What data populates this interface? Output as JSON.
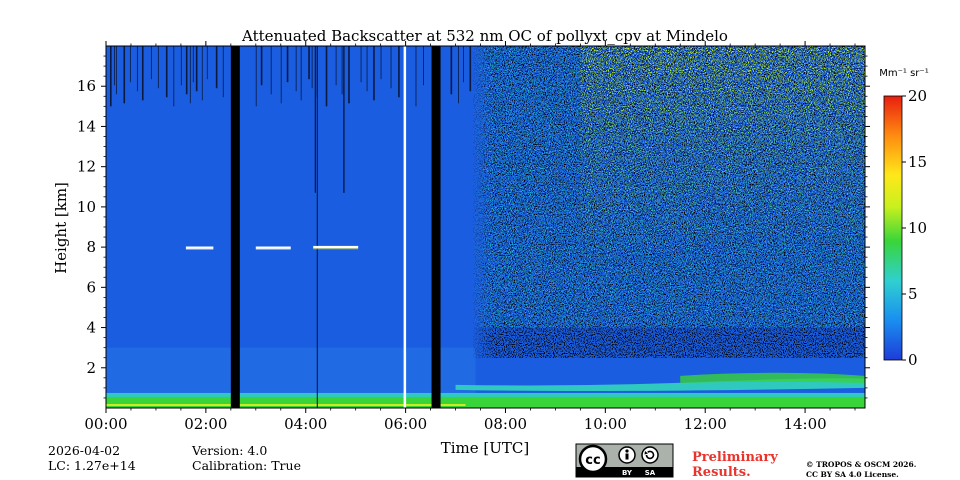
{
  "chart_data": {
    "type": "heatmap",
    "title": "Attenuated Backscatter at 532 nm OC of pollyxt_cpv at Mindelo",
    "xlabel": "Time [UTC]",
    "ylabel": "Height [km]",
    "xlim": [
      0,
      15.2
    ],
    "ylim": [
      0,
      18
    ],
    "x_ticks": [
      {
        "value": 0,
        "label": "00:00"
      },
      {
        "value": 2,
        "label": "02:00"
      },
      {
        "value": 4,
        "label": "04:00"
      },
      {
        "value": 6,
        "label": "06:00"
      },
      {
        "value": 8,
        "label": "08:00"
      },
      {
        "value": 10,
        "label": "10:00"
      },
      {
        "value": 12,
        "label": "12:00"
      },
      {
        "value": 14,
        "label": "14:00"
      }
    ],
    "y_ticks": [
      {
        "value": 2,
        "label": "2"
      },
      {
        "value": 4,
        "label": "4"
      },
      {
        "value": 6,
        "label": "6"
      },
      {
        "value": 8,
        "label": "8"
      },
      {
        "value": 10,
        "label": "10"
      },
      {
        "value": 12,
        "label": "12"
      },
      {
        "value": 14,
        "label": "14"
      },
      {
        "value": 16,
        "label": "16"
      }
    ],
    "colorbar": {
      "unit_label": "Mm⁻¹ sr⁻¹",
      "range": [
        0,
        20
      ],
      "ticks": [
        {
          "value": 0,
          "label": "0"
        },
        {
          "value": 5,
          "label": "5"
        },
        {
          "value": 10,
          "label": "10"
        },
        {
          "value": 15,
          "label": "15"
        },
        {
          "value": 20,
          "label": "20"
        }
      ],
      "colors": [
        "#1e3cd8",
        "#1a8ef0",
        "#2fd0d0",
        "#39d53a",
        "#c8f01e",
        "#ffe81a",
        "#ff8c10",
        "#e81e10"
      ]
    },
    "background_color": "#1a5de0",
    "data_gaps": [
      {
        "start": 2.5,
        "end": 2.68,
        "color": "#000000"
      },
      {
        "start": 6.52,
        "end": 6.7,
        "color": "#000000"
      }
    ],
    "missing_profiles": [
      {
        "time": 5.98,
        "color": "#ffffff"
      }
    ],
    "cloud_layers": [
      {
        "start": 1.6,
        "end": 2.15,
        "height": 7.97
      },
      {
        "start": 3.0,
        "end": 3.7,
        "height": 7.97
      },
      {
        "start": 4.15,
        "end": 5.05,
        "height": 8.0
      }
    ],
    "boundary_layer": {
      "top_km": 0.45,
      "aerosol_layer_km": [
        1.0,
        1.6
      ]
    },
    "noise_onset_time": 7.35
  },
  "footer": {
    "date": "2026-04-02",
    "lidar_constant": "LC: 1.27e+14",
    "version": "Version: 4.0",
    "calibration": "Calibration: True",
    "license_badge_text": "BY",
    "license_badge_text2": "SA",
    "license_badge_cc": "cc",
    "preliminary": "Preliminary",
    "results": "Results.",
    "copyright": "© TROPOS & OSCM 2026.",
    "license": "CC BY SA 4.0 License."
  }
}
